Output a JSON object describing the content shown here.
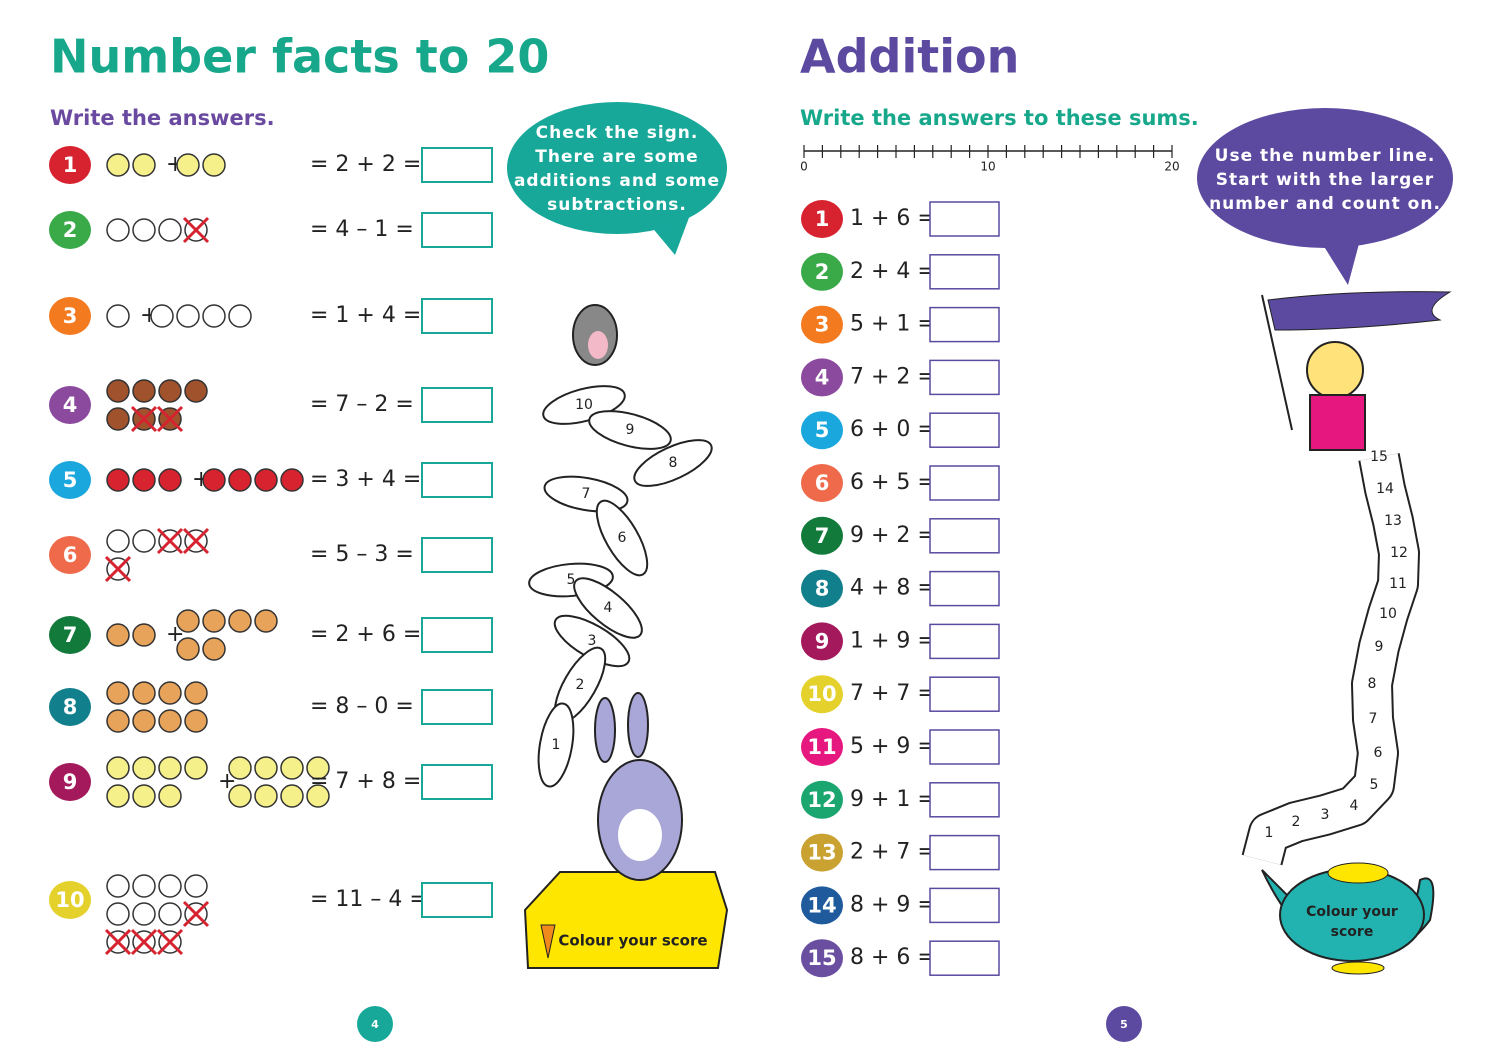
{
  "left_page": {
    "title": "Number facts to 20",
    "instruction": "Write the answers.",
    "questions": [
      {
        "number": "1",
        "equation": "= 2 + 2 ="
      },
      {
        "number": "2",
        "equation": "= 4 – 1 ="
      },
      {
        "number": "3",
        "equation": "= 1 + 4 ="
      },
      {
        "number": "4",
        "equation": "= 7 – 2 ="
      },
      {
        "number": "5",
        "equation": "= 3 + 4 ="
      },
      {
        "number": "6",
        "equation": "= 5 – 3 ="
      },
      {
        "number": "7",
        "equation": "= 2 + 6 ="
      },
      {
        "number": "8",
        "equation": "= 8 – 0 ="
      },
      {
        "number": "9",
        "equation": "= 7 + 8 ="
      },
      {
        "number": "10",
        "equation": "= 11 – 4 ="
      }
    ],
    "speech_bubble": [
      "Check the sign.",
      "There are some",
      "additions and some",
      "subtractions."
    ],
    "carrots": [
      "10",
      "9",
      "8",
      "7",
      "6",
      "5",
      "4",
      "3",
      "2",
      "1"
    ],
    "score_label": "Colour your score",
    "page_number": "4"
  },
  "right_page": {
    "title": "Addition",
    "instruction": "Write the answers to these sums.",
    "number_line_labels": [
      "0",
      "10",
      "20"
    ],
    "questions": [
      {
        "number": "1",
        "sum": "1 + 6 ="
      },
      {
        "number": "2",
        "sum": "2 + 4 ="
      },
      {
        "number": "3",
        "sum": "5 + 1 ="
      },
      {
        "number": "4",
        "sum": "7 + 2 ="
      },
      {
        "number": "5",
        "sum": "6 + 0 ="
      },
      {
        "number": "6",
        "sum": "6 + 5 ="
      },
      {
        "number": "7",
        "sum": "9 + 2 ="
      },
      {
        "number": "8",
        "sum": "4 + 8 ="
      },
      {
        "number": "9",
        "sum": "1 + 9 ="
      },
      {
        "number": "10",
        "sum": "7 + 7 ="
      },
      {
        "number": "11",
        "sum": "5 + 9 ="
      },
      {
        "number": "12",
        "sum": "9 + 1 ="
      },
      {
        "number": "13",
        "sum": "2 + 7 ="
      },
      {
        "number": "14",
        "sum": "8 + 9 ="
      },
      {
        "number": "15",
        "sum": "8 + 6 ="
      }
    ],
    "speech_bubble": [
      "Use the number line.",
      "Start with the larger",
      "number and count on."
    ],
    "scroll_numbers": [
      "1",
      "2",
      "3",
      "4",
      "5",
      "6",
      "7",
      "8",
      "9",
      "10",
      "11",
      "12",
      "13",
      "14",
      "15"
    ],
    "score_label": [
      "Colour your",
      "score"
    ],
    "page_number": "5"
  }
}
